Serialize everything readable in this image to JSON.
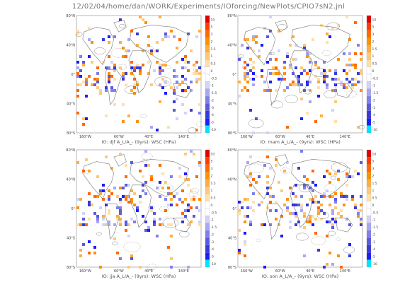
{
  "header": {
    "title": "12/02/04/home/dan/WORK/Experiments/IOforcing/NewPlots/CPIO7sN2.jnl"
  },
  "colors": {
    "scale": [
      "#00e5ff",
      "#1c1cff",
      "#3a3ad8",
      "#5a5ae0",
      "#8080ea",
      "#a8a8f2",
      "#d2d2fa",
      "#ffffff",
      "#ffffff",
      "#ffe0a8",
      "#ffc878",
      "#ffad40",
      "#ff9000",
      "#ff6a00",
      "#ff3c00",
      "#e00000"
    ],
    "land": "#777777",
    "contour": "#555555"
  },
  "chart_data": [
    {
      "type": "heatmap",
      "id": "djf",
      "title": "IO: djf A_L/A_- (9yrs): WSC (HPa)",
      "ylabels": [
        "80°N",
        "40°N",
        "0°",
        "40°S",
        "80°S"
      ],
      "xlabels": [
        "160°W",
        "60°W",
        "40°E",
        "140°E"
      ],
      "colorbar_ticks": [
        "10",
        "5",
        "3",
        "2",
        "1.5",
        "1",
        "0.5",
        "0",
        "-0.5",
        "-1",
        "-1.5",
        "-2",
        "-3",
        "-4",
        "-5",
        "-10"
      ],
      "seed": 11
    },
    {
      "type": "heatmap",
      "id": "mam",
      "title": "IO: mam A_L/A_- (9yrs): WSC (HPa)",
      "ylabels": [
        "80°N",
        "40°N",
        "0°",
        "40°S",
        "80°S"
      ],
      "xlabels": [
        "160°W",
        "60°W",
        "40°E",
        "140°E"
      ],
      "colorbar_ticks": [
        "10",
        "5",
        "3",
        "2",
        "1.5",
        "1",
        "0.5",
        "0",
        "-0.5",
        "-1",
        "-1.5",
        "-2",
        "-3",
        "-4",
        "-5",
        "-10"
      ],
      "seed": 23
    },
    {
      "type": "heatmap",
      "id": "jja",
      "title": "IO: jja A_L/A_- (9yrs): WSC (HPa)",
      "ylabels": [
        "80°N",
        "40°N",
        "0°",
        "40°S",
        "80°S"
      ],
      "xlabels": [
        "160°W",
        "60°W",
        "40°E",
        "140°E"
      ],
      "colorbar_ticks": [
        "10",
        "5",
        "3",
        "2",
        "1.5",
        "1",
        "0.5",
        "0",
        "-0.5",
        "-1",
        "-1.5",
        "-2",
        "-3",
        "-4",
        "-5",
        "-10"
      ],
      "seed": 37
    },
    {
      "type": "heatmap",
      "id": "son",
      "title": "IO: son A_L/A_- (9yrs): WSC (HPa)",
      "ylabels": [
        "80°N",
        "40°N",
        "0°",
        "40°S",
        "80°S"
      ],
      "xlabels": [
        "160°W",
        "60°W",
        "40°E",
        "140°E"
      ],
      "colorbar_ticks": [
        "10",
        "5",
        "3",
        "2",
        "1.5",
        "1",
        "0.5",
        "0",
        "-0.5",
        "-1",
        "-1.5",
        "-2",
        "-3",
        "-4",
        "-5",
        "-10"
      ],
      "seed": 51
    }
  ]
}
